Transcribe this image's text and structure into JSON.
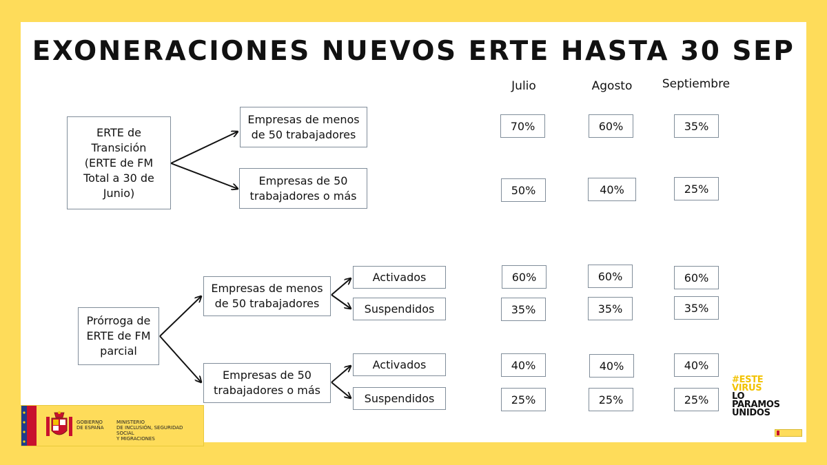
{
  "title": "EXONERACIONES NUEVOS ERTE HASTA 30 SEP",
  "columns": [
    "Julio",
    "Agosto",
    "Septiembre"
  ],
  "transicion": {
    "root": "ERTE de Transición (ERTE de FM Total a 30 de Junio)",
    "root_lines": [
      "ERTE de",
      "Transición",
      "(ERTE de FM",
      "Total a 30 de",
      "Junio)"
    ],
    "menos_lines": [
      "Empresas de menos",
      "de 50 trabajadores"
    ],
    "mas_lines": [
      "Empresas de 50",
      "trabajadores o más"
    ],
    "menos_values": [
      "70%",
      "60%",
      "35%"
    ],
    "mas_values": [
      "50%",
      "40%",
      "25%"
    ]
  },
  "prorroga": {
    "root_lines": [
      "Prórroga de",
      "ERTE de FM",
      "parcial"
    ],
    "menos_lines": [
      "Empresas de menos",
      "de 50 trabajadores"
    ],
    "mas_lines": [
      "Empresas de 50",
      "trabajadores o más"
    ],
    "activados": "Activados",
    "suspendidos": "Suspendidos",
    "menos_activados_values": [
      "60%",
      "60%",
      "60%"
    ],
    "menos_suspendidos_values": [
      "35%",
      "35%",
      "35%"
    ],
    "mas_activados_values": [
      "40%",
      "40%",
      "40%"
    ],
    "mas_suspendidos_values": [
      "25%",
      "25%",
      "25%"
    ]
  },
  "logo": {
    "gobierno_lines": [
      "GOBIERNO",
      "DE ESPAÑA"
    ],
    "ministerio_lines": [
      "MINISTERIO",
      "DE INCLUSIÓN, SEGURIDAD SOCIAL",
      "Y MIGRACIONES"
    ]
  },
  "campaign": {
    "lines": [
      "#ESTE",
      "VIRUS",
      "LO",
      "PARAMOS",
      "UNIDOS"
    ]
  },
  "colors": {
    "background": "#FEDC5A",
    "card": "#ffffff",
    "border": "#7f8c99",
    "campaign_accent": "#f2c200"
  }
}
